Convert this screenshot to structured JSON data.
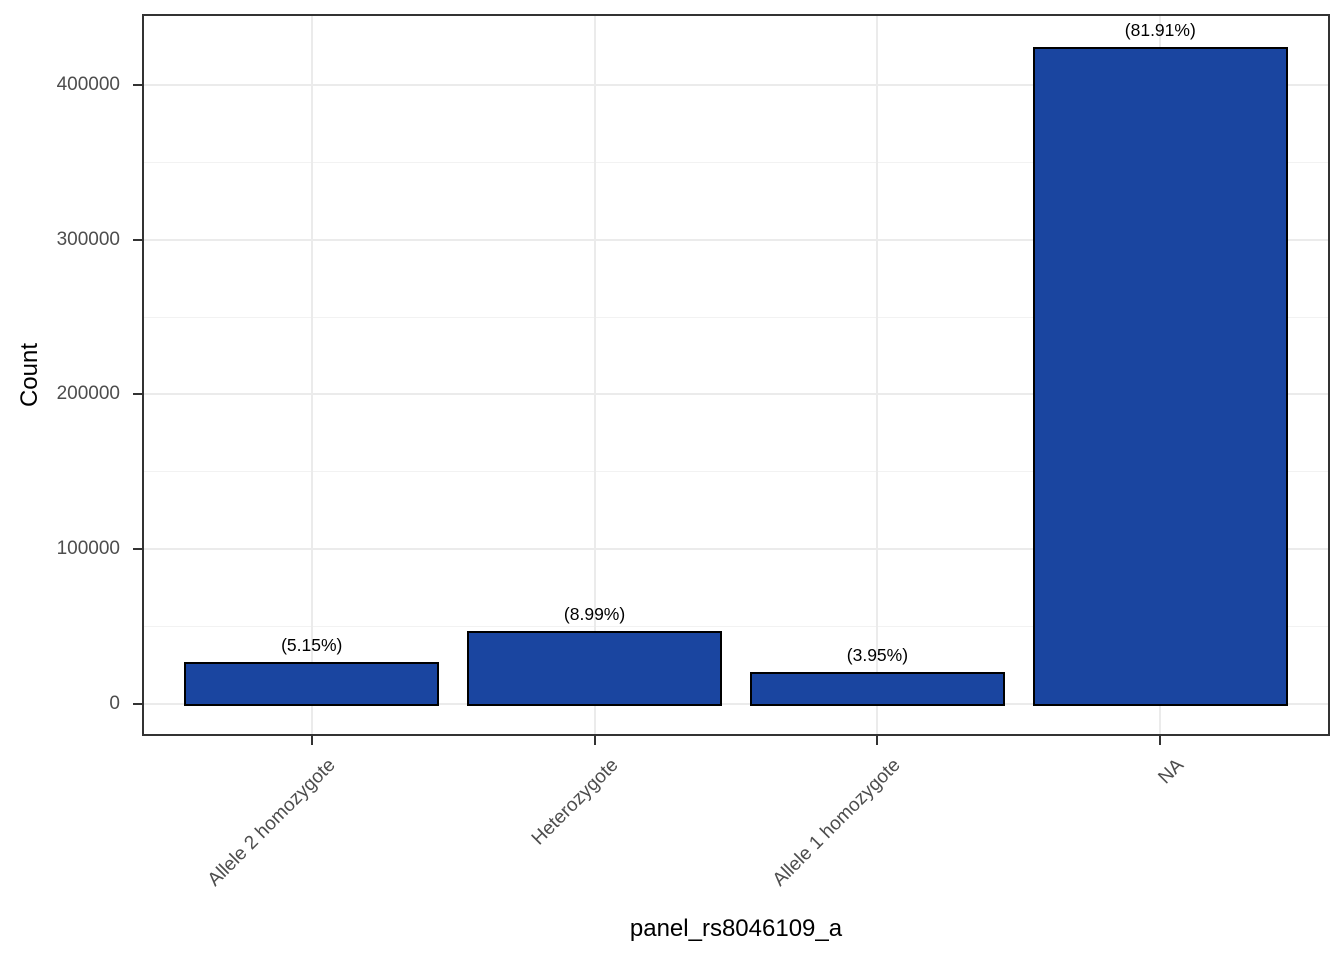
{
  "window": {
    "background": "#ffffff"
  },
  "chart_data": {
    "type": "bar",
    "title": "",
    "xlabel": "panel_rs8046109_a",
    "ylabel": "Count",
    "categories": [
      "Allele 2 homozygote",
      "Heterozygote",
      "Allele 1 homozygote",
      "NA"
    ],
    "values": [
      26700,
      46600,
      20500,
      424500
    ],
    "value_labels": [
      "(5.15%)",
      "(8.99%)",
      "(3.95%)",
      "(81.91%)"
    ],
    "ylim": [
      -21000,
      446000
    ],
    "yticks": [
      {
        "value": 0,
        "label": "0"
      },
      {
        "value": 100000,
        "label": "100000"
      },
      {
        "value": 200000,
        "label": "200000"
      },
      {
        "value": 300000,
        "label": "300000"
      },
      {
        "value": 400000,
        "label": "400000"
      }
    ],
    "yticks_minor": [
      50000,
      150000,
      250000,
      350000
    ],
    "grid": {
      "major": true,
      "minor": true
    },
    "legend_position": "none",
    "bar_width_frac": 0.2143,
    "colors": {
      "bar_fill": "#1a45a0",
      "bar_stroke": "#000000",
      "grid_major": "#ebebeb",
      "grid_minor": "#f2f2f2",
      "panel_border": "#333333",
      "tick_mark": "#333333",
      "tick_label": "#4d4d4d",
      "axis_title": "#000000",
      "bar_label_text": "#000000"
    }
  }
}
